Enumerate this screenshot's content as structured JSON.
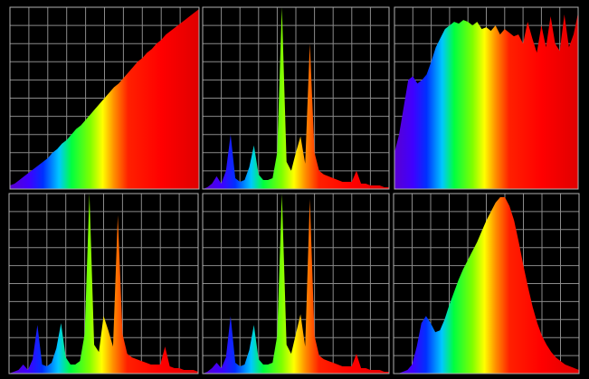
{
  "chart_data": [
    {
      "type": "area",
      "grid": true,
      "xlim": [
        380,
        780
      ],
      "ylim": [
        0,
        100
      ],
      "xticks": [
        380,
        420,
        460,
        500,
        540,
        580,
        620,
        660,
        700,
        740,
        780
      ],
      "yticks": [
        0,
        10,
        20,
        30,
        40,
        50,
        60,
        70,
        80,
        90,
        100
      ],
      "x": [
        380,
        390,
        400,
        410,
        420,
        430,
        440,
        450,
        460,
        470,
        480,
        490,
        500,
        510,
        520,
        530,
        540,
        550,
        560,
        570,
        580,
        590,
        600,
        610,
        620,
        630,
        640,
        650,
        660,
        670,
        680,
        690,
        700,
        710,
        720,
        730,
        740,
        750,
        760,
        770,
        780
      ],
      "values": [
        2,
        3,
        5,
        7,
        9,
        11,
        13,
        15,
        17,
        20,
        22,
        25,
        27,
        30,
        33,
        35,
        38,
        41,
        44,
        47,
        50,
        53,
        56,
        58,
        61,
        64,
        67,
        70,
        72,
        75,
        77,
        80,
        82,
        85,
        87,
        89,
        91,
        93,
        95,
        97,
        99
      ]
    },
    {
      "type": "area",
      "grid": true,
      "xlim": [
        380,
        780
      ],
      "ylim": [
        0,
        100
      ],
      "xticks": [
        380,
        420,
        460,
        500,
        540,
        580,
        620,
        660,
        700,
        740,
        780
      ],
      "yticks": [
        0,
        10,
        20,
        30,
        40,
        50,
        60,
        70,
        80,
        90,
        100
      ],
      "x": [
        380,
        390,
        400,
        410,
        420,
        430,
        440,
        450,
        460,
        470,
        480,
        490,
        500,
        510,
        520,
        530,
        540,
        550,
        560,
        570,
        580,
        590,
        600,
        610,
        620,
        630,
        640,
        650,
        660,
        670,
        680,
        690,
        700,
        710,
        720,
        730,
        740,
        750,
        760,
        770,
        780
      ],
      "values": [
        0,
        1,
        3,
        7,
        3,
        10,
        30,
        6,
        4,
        5,
        12,
        24,
        8,
        5,
        5,
        6,
        20,
        100,
        15,
        10,
        20,
        29,
        14,
        80,
        20,
        10,
        8,
        7,
        6,
        5,
        4,
        4,
        4,
        10,
        3,
        3,
        2,
        2,
        2,
        1,
        1
      ]
    },
    {
      "type": "area",
      "grid": true,
      "xlim": [
        380,
        780
      ],
      "ylim": [
        0,
        100
      ],
      "xticks": [
        380,
        420,
        460,
        500,
        540,
        580,
        620,
        660,
        700,
        740,
        780
      ],
      "yticks": [
        0,
        10,
        20,
        30,
        40,
        50,
        60,
        70,
        80,
        90,
        100
      ],
      "x": [
        380,
        390,
        400,
        410,
        420,
        430,
        440,
        450,
        460,
        470,
        480,
        490,
        500,
        510,
        520,
        530,
        540,
        550,
        560,
        570,
        580,
        590,
        600,
        610,
        620,
        630,
        640,
        650,
        660,
        670,
        680,
        690,
        700,
        710,
        720,
        730,
        740,
        750,
        760,
        770,
        780
      ],
      "values": [
        20,
        30,
        45,
        60,
        62,
        58,
        60,
        63,
        70,
        78,
        83,
        88,
        90,
        92,
        91,
        93,
        92,
        90,
        92,
        88,
        89,
        87,
        90,
        85,
        88,
        86,
        84,
        85,
        80,
        92,
        83,
        75,
        90,
        78,
        95,
        80,
        76,
        96,
        78,
        85,
        97
      ]
    },
    {
      "type": "area",
      "grid": true,
      "xlim": [
        380,
        780
      ],
      "ylim": [
        0,
        100
      ],
      "xticks": [
        380,
        420,
        460,
        500,
        540,
        580,
        620,
        660,
        700,
        740,
        780
      ],
      "yticks": [
        0,
        10,
        20,
        30,
        40,
        50,
        60,
        70,
        80,
        90,
        100
      ],
      "x": [
        380,
        390,
        400,
        410,
        420,
        430,
        440,
        450,
        460,
        470,
        480,
        490,
        500,
        510,
        520,
        530,
        540,
        550,
        560,
        570,
        580,
        590,
        600,
        610,
        620,
        630,
        640,
        650,
        660,
        670,
        680,
        690,
        700,
        710,
        720,
        730,
        740,
        750,
        760,
        770,
        780
      ],
      "values": [
        0,
        1,
        2,
        5,
        2,
        8,
        27,
        5,
        4,
        6,
        14,
        28,
        9,
        5,
        5,
        7,
        22,
        100,
        16,
        12,
        32,
        24,
        15,
        88,
        22,
        11,
        9,
        8,
        7,
        6,
        5,
        5,
        5,
        15,
        4,
        3,
        3,
        2,
        2,
        2,
        1
      ]
    },
    {
      "type": "area",
      "grid": true,
      "xlim": [
        380,
        780
      ],
      "ylim": [
        0,
        100
      ],
      "xticks": [
        380,
        420,
        460,
        500,
        540,
        580,
        620,
        660,
        700,
        740,
        780
      ],
      "yticks": [
        0,
        10,
        20,
        30,
        40,
        50,
        60,
        70,
        80,
        90,
        100
      ],
      "x": [
        380,
        390,
        400,
        410,
        420,
        430,
        440,
        450,
        460,
        470,
        480,
        490,
        500,
        510,
        520,
        530,
        540,
        550,
        560,
        570,
        580,
        590,
        600,
        610,
        620,
        630,
        640,
        650,
        660,
        670,
        680,
        690,
        700,
        710,
        720,
        730,
        740,
        750,
        760,
        770,
        780
      ],
      "values": [
        0,
        1,
        3,
        6,
        3,
        9,
        32,
        6,
        4,
        5,
        13,
        27,
        8,
        5,
        5,
        6,
        21,
        100,
        16,
        11,
        22,
        33,
        15,
        97,
        21,
        10,
        8,
        7,
        6,
        5,
        4,
        4,
        4,
        11,
        3,
        3,
        2,
        2,
        2,
        1,
        1
      ]
    },
    {
      "type": "area",
      "grid": true,
      "xlim": [
        380,
        780
      ],
      "ylim": [
        0,
        100
      ],
      "xticks": [
        380,
        420,
        460,
        500,
        540,
        580,
        620,
        660,
        700,
        740,
        780
      ],
      "yticks": [
        0,
        10,
        20,
        30,
        40,
        50,
        60,
        70,
        80,
        90,
        100
      ],
      "x": [
        380,
        390,
        400,
        410,
        420,
        430,
        440,
        450,
        460,
        470,
        480,
        490,
        500,
        510,
        520,
        530,
        540,
        550,
        560,
        570,
        580,
        590,
        600,
        610,
        620,
        630,
        640,
        650,
        660,
        670,
        680,
        690,
        700,
        710,
        720,
        730,
        740,
        750,
        760,
        770,
        780
      ],
      "values": [
        0,
        0,
        1,
        2,
        5,
        15,
        28,
        32,
        28,
        23,
        24,
        30,
        38,
        45,
        52,
        58,
        63,
        68,
        73,
        79,
        85,
        90,
        95,
        98,
        98,
        93,
        85,
        73,
        60,
        48,
        37,
        28,
        21,
        16,
        12,
        9,
        7,
        5,
        4,
        3,
        2
      ]
    }
  ]
}
